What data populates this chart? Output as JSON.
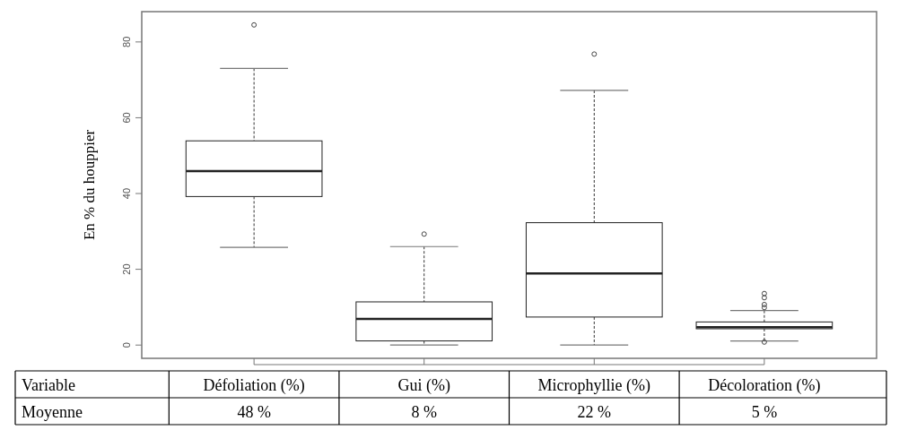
{
  "chart_data": {
    "type": "box",
    "categories": [
      "Défoliation (%)",
      "Gui (%)",
      "Microphyllie (%)",
      "Décoloration (%)"
    ],
    "boxes": [
      {
        "low": 25.8,
        "q1": 39.2,
        "median": 45.9,
        "q3": 53.9,
        "high": 73.0,
        "outliers": [
          84.5
        ]
      },
      {
        "low": 0,
        "q1": 1.1,
        "median": 6.9,
        "q3": 11.4,
        "high": 26.0,
        "outliers": [
          29.3
        ]
      },
      {
        "low": 0,
        "q1": 7.4,
        "median": 18.9,
        "q3": 32.3,
        "high": 67.2,
        "outliers": [
          76.8
        ]
      },
      {
        "low": 1.1,
        "q1": 4.3,
        "median": 4.7,
        "q3": 6.1,
        "high": 9.1,
        "outliers": [
          13.6,
          12.5,
          10.7,
          9.9,
          0.8
        ]
      }
    ],
    "ylabel": "En % du houppier",
    "ylim": [
      -3.5,
      88
    ],
    "yticks": [
      0,
      20,
      40,
      60,
      80
    ],
    "tick_labels": "y",
    "annotations": [
      "Variable",
      "Moyenne",
      "48 %",
      "8 %",
      "22 %",
      "5 %"
    ]
  }
}
